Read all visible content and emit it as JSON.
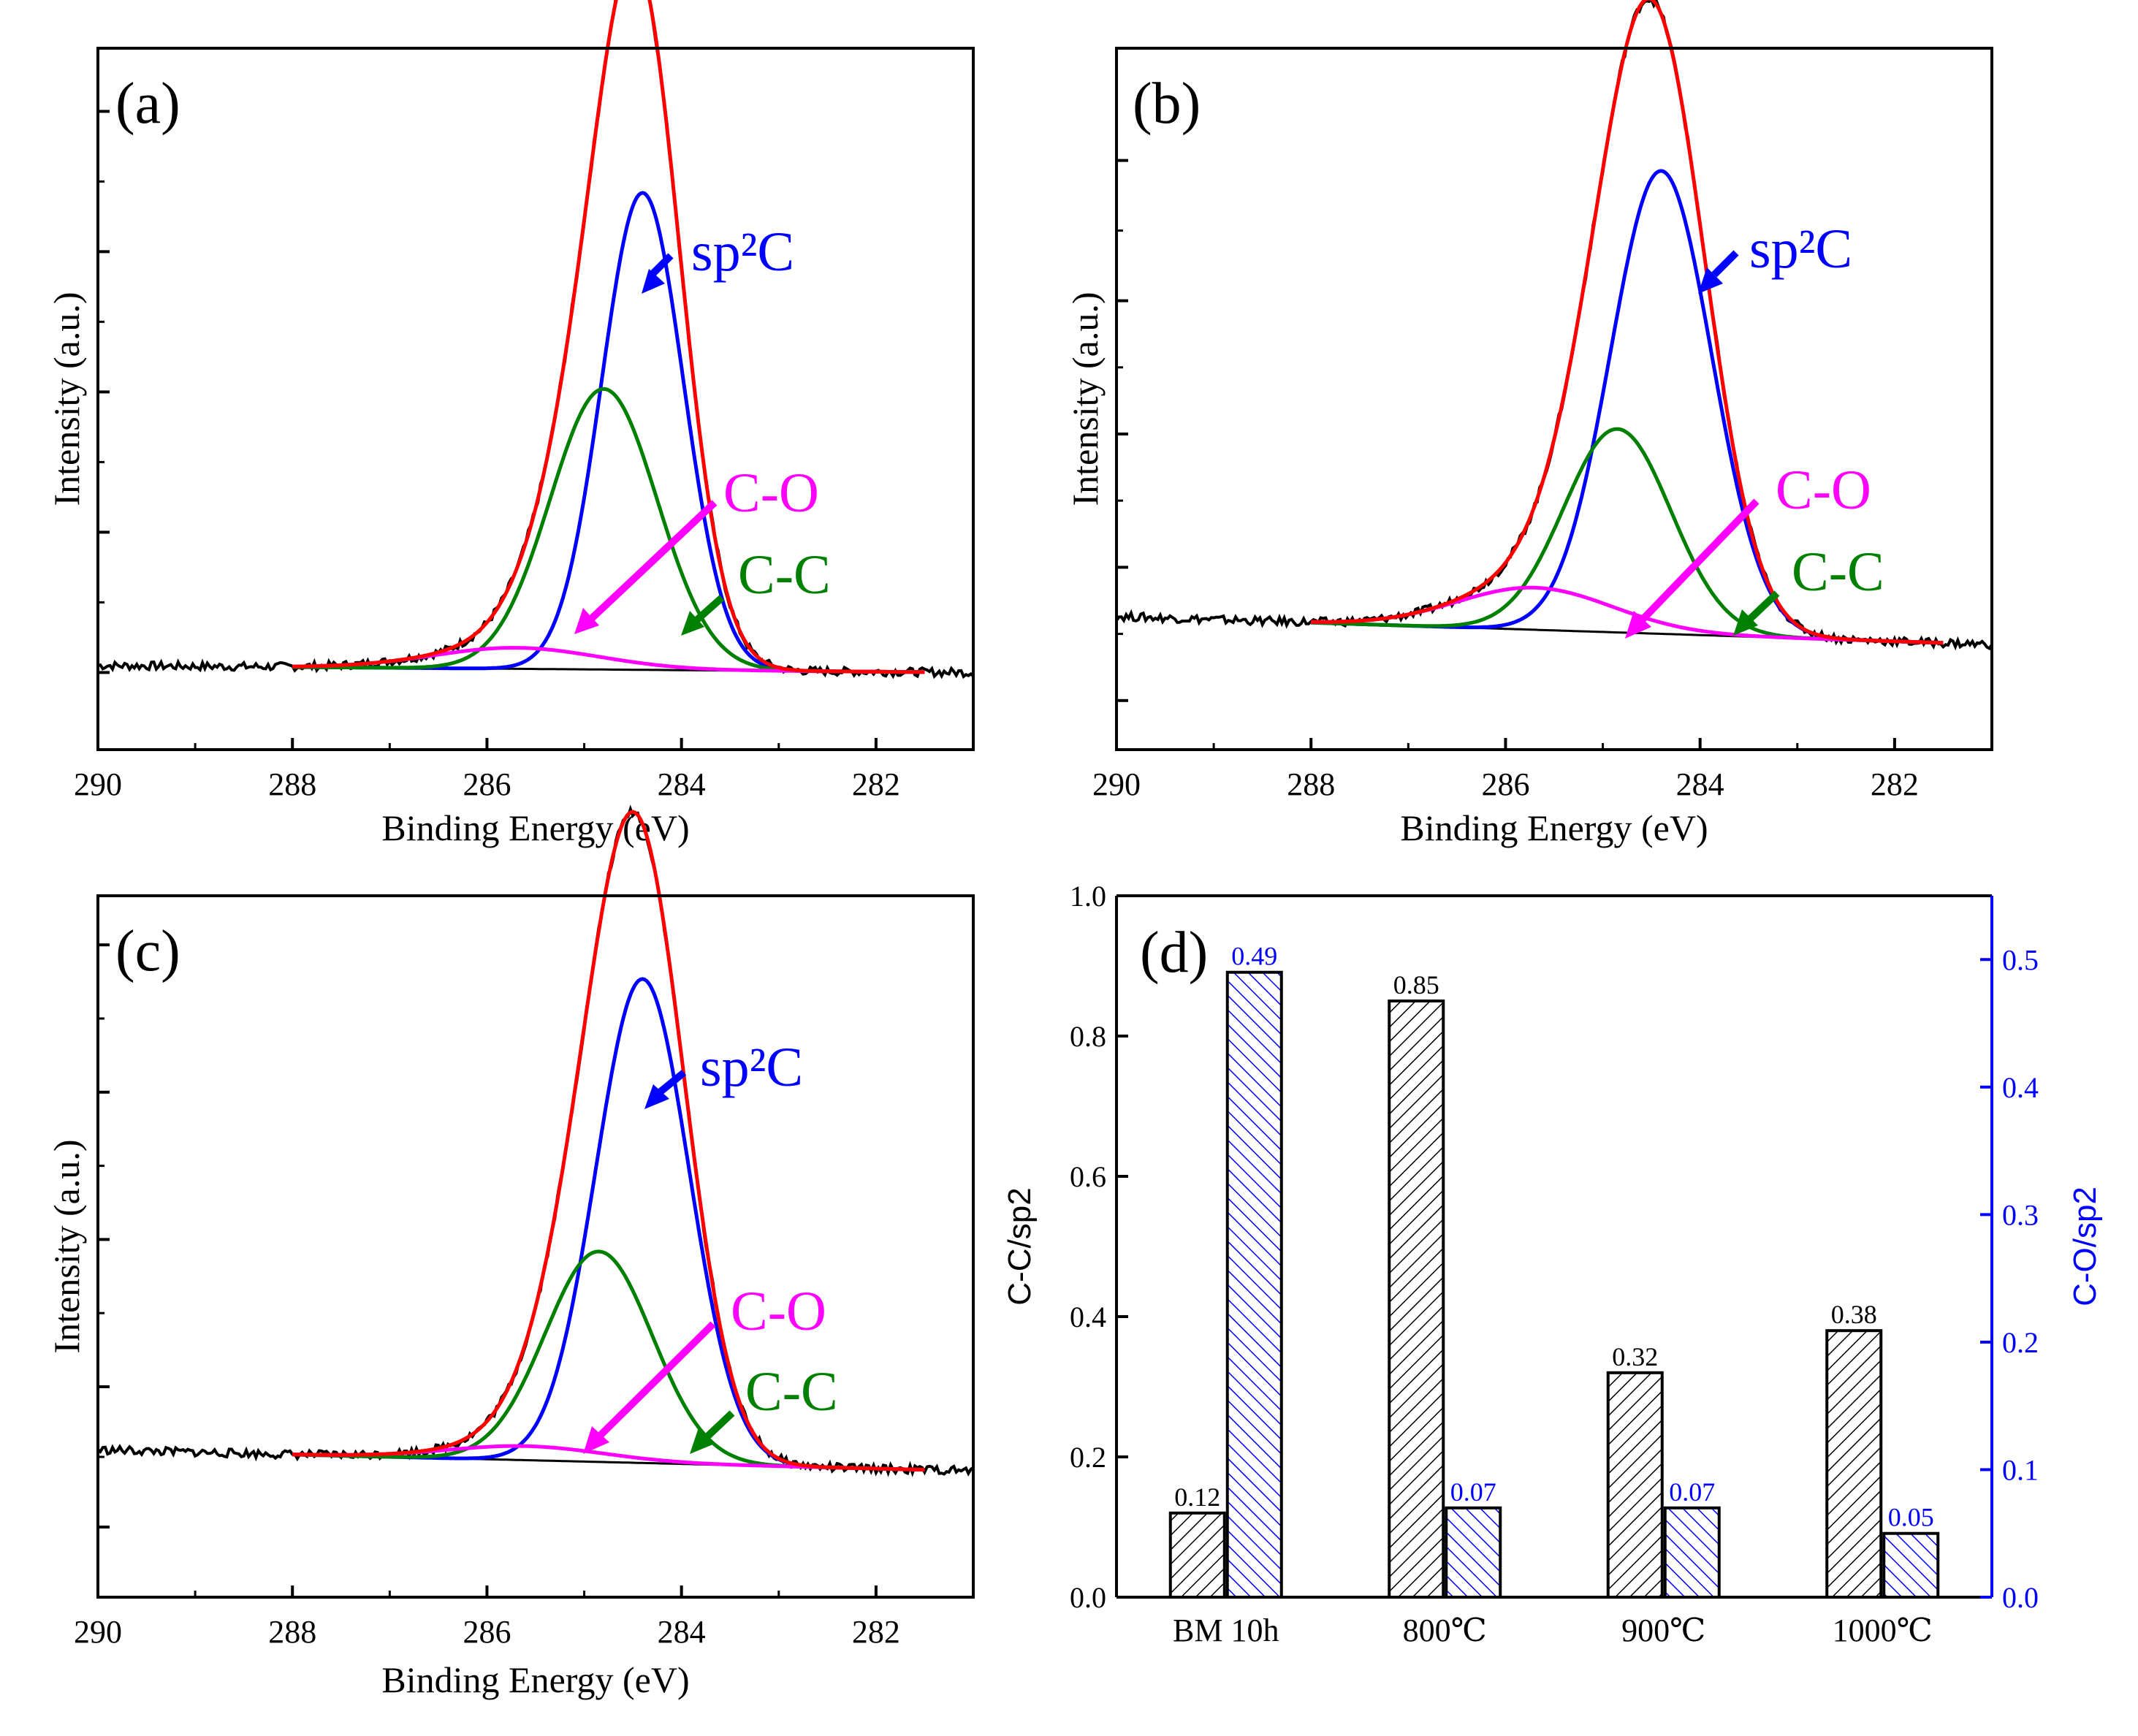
{
  "chart_data": [
    {
      "type": "line",
      "panel_label": "(a)",
      "xlabel": "Binding Energy (eV)",
      "ylabel": "Intensity (a.u.)",
      "xlim": [
        290,
        281
      ],
      "ylim": [
        0,
        1
      ],
      "x_ticks": [
        290,
        288,
        286,
        284,
        282
      ],
      "y_ticks": [
        0.11,
        0.31,
        0.51,
        0.71,
        0.91
      ],
      "baseline": {
        "left": 0.12,
        "right": 0.11
      },
      "components": [
        {
          "name": "sp2C",
          "center": 284.4,
          "height": 0.68,
          "sigma": 0.42
        },
        {
          "name": "C-C",
          "center": 284.8,
          "height": 0.4,
          "sigma": 0.55
        },
        {
          "name": "C-O",
          "center": 285.7,
          "height": 0.03,
          "sigma": 0.85
        }
      ],
      "annotations": [
        {
          "text": "sp²C",
          "target": "sp2C",
          "color": "#0000ff"
        },
        {
          "text": "C-O",
          "target": "C-O",
          "color": "#ff00ff"
        },
        {
          "text": "C-C",
          "target": "C-C",
          "color": "#008000"
        }
      ]
    },
    {
      "type": "line",
      "panel_label": "(b)",
      "xlabel": "Binding Energy (eV)",
      "ylabel": "Intensity (a.u.)",
      "xlim": [
        290,
        281
      ],
      "ylim": [
        0,
        1
      ],
      "x_ticks": [
        290,
        288,
        286,
        284,
        282
      ],
      "y_ticks": [
        0.07,
        0.26,
        0.45,
        0.64,
        0.84
      ],
      "baseline": {
        "left": 0.19,
        "right": 0.15
      },
      "components": [
        {
          "name": "sp2C",
          "center": 284.4,
          "height": 0.66,
          "sigma": 0.52
        },
        {
          "name": "C-C",
          "center": 284.85,
          "height": 0.29,
          "sigma": 0.55
        },
        {
          "name": "C-O",
          "center": 285.7,
          "height": 0.06,
          "sigma": 0.8
        }
      ],
      "annotations": [
        {
          "text": "sp²C",
          "target": "sp2C",
          "color": "#0000ff"
        },
        {
          "text": "C-O",
          "target": "C-O",
          "color": "#ff00ff"
        },
        {
          "text": "C-C",
          "target": "C-C",
          "color": "#008000"
        }
      ]
    },
    {
      "type": "line",
      "panel_label": "(c)",
      "xlabel": "Binding Energy (eV)",
      "ylabel": "Intensity (a.u.)",
      "xlim": [
        290,
        281
      ],
      "ylim": [
        0,
        1
      ],
      "x_ticks": [
        290,
        288,
        286,
        284,
        282
      ],
      "y_ticks": [
        0.1,
        0.3,
        0.51,
        0.72,
        0.93
      ],
      "baseline": {
        "left": 0.21,
        "right": 0.18
      },
      "components": [
        {
          "name": "sp2C",
          "center": 284.4,
          "height": 0.69,
          "sigma": 0.48
        },
        {
          "name": "C-C",
          "center": 284.85,
          "height": 0.3,
          "sigma": 0.55
        },
        {
          "name": "C-O",
          "center": 285.6,
          "height": 0.02,
          "sigma": 0.8
        }
      ],
      "annotations": [
        {
          "text": "sp²C",
          "target": "sp2C",
          "color": "#0000ff"
        },
        {
          "text": "C-O",
          "target": "C-O",
          "color": "#ff00ff"
        },
        {
          "text": "C-C",
          "target": "C-C",
          "color": "#008000"
        }
      ]
    },
    {
      "type": "bar",
      "panel_label": "(d)",
      "categories": [
        "BM 10h",
        "800℃",
        "900℃",
        "1000℃"
      ],
      "series": [
        {
          "values": [
            0.12,
            0.85,
            0.32,
            0.38
          ],
          "axis": "left",
          "color": "#000000"
        },
        {
          "values": [
            0.49,
            0.07,
            0.07,
            0.05
          ],
          "axis": "right",
          "color": "#0000ff"
        }
      ],
      "ylabel": "C-C/sp2",
      "ylabel_right": "C-O/sp2",
      "ylim": [
        0,
        1.0
      ],
      "ylim_right": [
        0,
        0.55
      ],
      "y_ticks": [
        "0.0",
        "0.2",
        "0.4",
        "0.6",
        "0.8",
        "1.0"
      ],
      "y_ticks_right": [
        "0.0",
        "0.1",
        "0.2",
        "0.3",
        "0.4",
        "0.5"
      ]
    }
  ]
}
